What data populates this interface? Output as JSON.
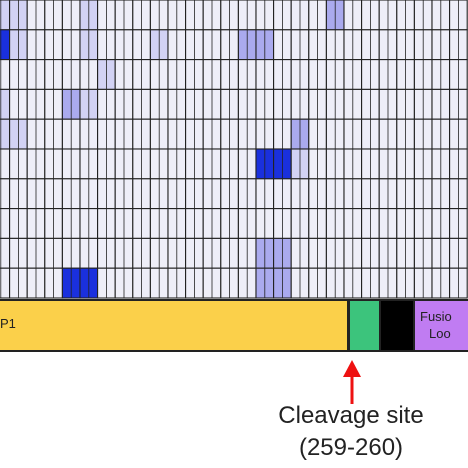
{
  "colors": {
    "background": "#ffffff",
    "cell_base": "#eeeef8",
    "cell_light": "#d2d2f4",
    "cell_medium": "#aaaaee",
    "cell_dark": "#1a30dd",
    "grid_line": "#222222",
    "domain_p1": "#fbd04a",
    "domain_cleavage": "#3cc47c",
    "domain_black": "#000000",
    "domain_fusion": "#c07cf2",
    "arrow": "#ee1111"
  },
  "heatmap": {
    "rows": 10,
    "columns": 27,
    "intensity_scale": [
      "none",
      "light",
      "medium",
      "dark"
    ],
    "highlighted_cells": [
      {
        "row": 0,
        "col": 0,
        "level": 1
      },
      {
        "row": 0,
        "col": 1,
        "level": 1
      },
      {
        "row": 0,
        "col": 5,
        "level": 1
      },
      {
        "row": 0,
        "col": 19,
        "level": 2
      },
      {
        "row": 1,
        "col": 0,
        "level": 3
      },
      {
        "row": 1,
        "col": 1,
        "level": 1
      },
      {
        "row": 1,
        "col": 5,
        "level": 1
      },
      {
        "row": 1,
        "col": 9,
        "level": 1
      },
      {
        "row": 1,
        "col": 14,
        "level": 2
      },
      {
        "row": 1,
        "col": 15,
        "level": 2
      },
      {
        "row": 2,
        "col": 6,
        "level": 1
      },
      {
        "row": 3,
        "col": 0,
        "level": 1
      },
      {
        "row": 3,
        "col": 4,
        "level": 2
      },
      {
        "row": 3,
        "col": 5,
        "level": 1
      },
      {
        "row": 4,
        "col": 0,
        "level": 1
      },
      {
        "row": 4,
        "col": 1,
        "level": 1
      },
      {
        "row": 4,
        "col": 17,
        "level": 2
      },
      {
        "row": 5,
        "col": 15,
        "level": 3
      },
      {
        "row": 5,
        "col": 16,
        "level": 3
      },
      {
        "row": 5,
        "col": 17,
        "level": 1
      },
      {
        "row": 8,
        "col": 15,
        "level": 2
      },
      {
        "row": 8,
        "col": 16,
        "level": 2
      },
      {
        "row": 9,
        "col": 4,
        "level": 3
      },
      {
        "row": 9,
        "col": 5,
        "level": 3
      },
      {
        "row": 9,
        "col": 15,
        "level": 2
      },
      {
        "row": 9,
        "col": 16,
        "level": 2
      }
    ]
  },
  "domain_bar": {
    "p1_label": "P1",
    "fusion_label_line1": "Fusio",
    "fusion_label_line2": "Loo"
  },
  "annotation": {
    "line1": "Cleavage site",
    "line2": "(259-260)"
  }
}
